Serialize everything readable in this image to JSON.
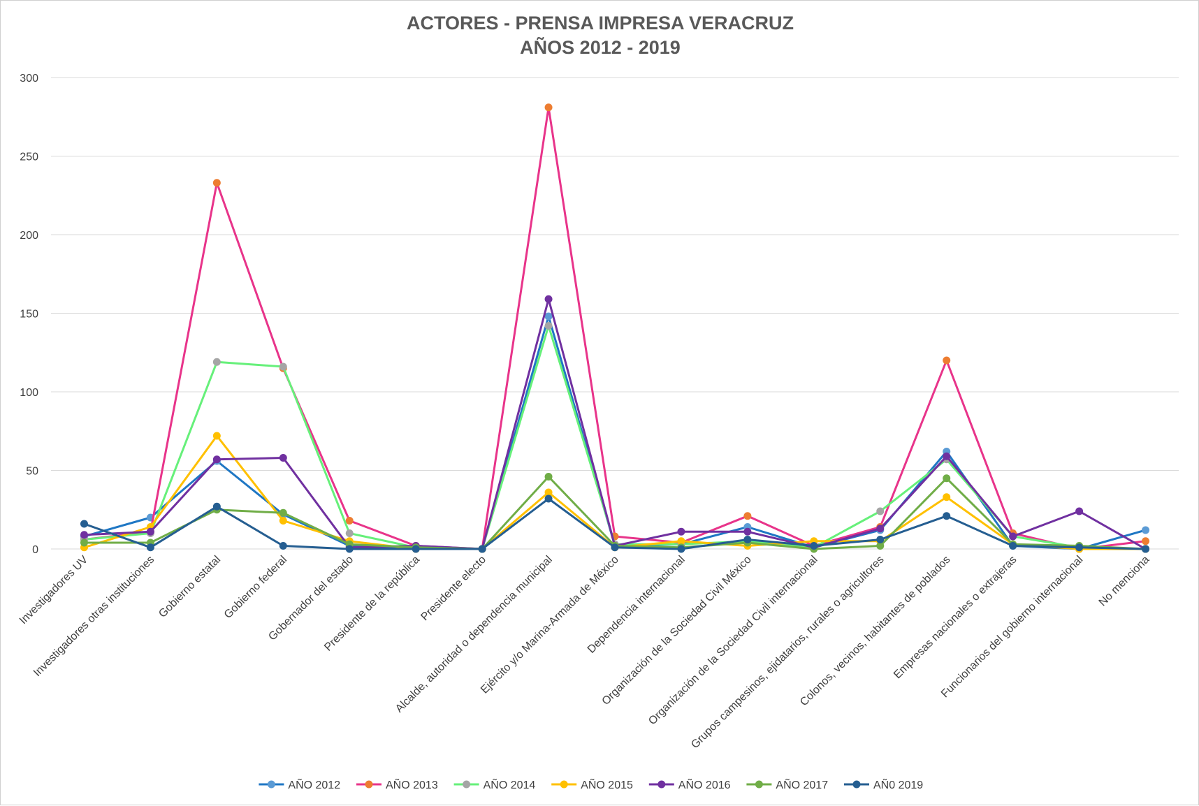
{
  "chart_data": {
    "type": "line",
    "title": "ACTORES - PRENSA IMPRESA VERACRUZ",
    "subtitle": "AÑOS 2012 - 2019",
    "xlabel": "",
    "ylabel": "",
    "ylim": [
      0,
      300
    ],
    "yticks": [
      "0",
      "50",
      "100",
      "150",
      "200",
      "250",
      "300"
    ],
    "grid": true,
    "legend_position": "bottom",
    "categories": [
      "Investigadores UV",
      "Investigadores otras instituciones",
      "Gobierno estatal",
      "Gobierno federal",
      "Gobernador del estado",
      "Presidente de la república",
      "Presidente electo",
      "Alcalde, autoridad o dependencia municipal",
      "Ejército y/o Marina-Armada de México",
      "Dependencia internacional",
      "Organización de la Sociedad Civil México",
      "Organización de la Sociedad Civil internacional",
      "Grupos campesinos, ejidatarios, rurales o agricultores",
      "Colonos, vecinos, habitantes de poblados",
      "Empresas nacionales o extrajeras",
      "Funcionarios del gobierno internacional",
      "No menciona"
    ],
    "series": [
      {
        "name": "AÑO 2012",
        "line_color": "#1f77c4",
        "marker_color": "#5b9bd5",
        "values": [
          8,
          20,
          56,
          22,
          2,
          0,
          0,
          148,
          2,
          3,
          14,
          1,
          12,
          62,
          2,
          0,
          12
        ]
      },
      {
        "name": "AÑO 2013",
        "line_color": "#e8348a",
        "marker_color": "#ed7d31",
        "values": [
          6,
          11,
          233,
          115,
          18,
          2,
          0,
          281,
          8,
          4,
          21,
          2,
          14,
          120,
          10,
          0,
          5
        ]
      },
      {
        "name": "AÑO 2014",
        "line_color": "#66f07a",
        "marker_color": "#a5a5a5",
        "values": [
          6,
          10,
          119,
          116,
          10,
          1,
          0,
          142,
          3,
          3,
          5,
          1,
          24,
          57,
          8,
          1,
          0
        ]
      },
      {
        "name": "AÑO 2015",
        "line_color": "#ffc000",
        "marker_color": "#ffc000",
        "values": [
          1,
          14,
          72,
          18,
          5,
          0,
          0,
          36,
          1,
          5,
          2,
          5,
          5,
          33,
          3,
          0,
          0
        ]
      },
      {
        "name": "AÑO 2016",
        "line_color": "#7030a0",
        "marker_color": "#7030a0",
        "values": [
          9,
          11,
          57,
          58,
          1,
          2,
          0,
          159,
          2,
          11,
          11,
          1,
          13,
          59,
          8,
          24,
          0
        ]
      },
      {
        "name": "AÑO 2017",
        "line_color": "#70ad47",
        "marker_color": "#70ad47",
        "values": [
          4,
          4,
          25,
          23,
          3,
          1,
          0,
          46,
          2,
          1,
          4,
          0,
          2,
          45,
          3,
          2,
          0
        ]
      },
      {
        "name": "AÑ0 2019",
        "line_color": "#255e91",
        "marker_color": "#255e91",
        "values": [
          16,
          1,
          27,
          2,
          0,
          0,
          0,
          32,
          1,
          0,
          6,
          2,
          6,
          21,
          2,
          1,
          0
        ]
      }
    ]
  }
}
